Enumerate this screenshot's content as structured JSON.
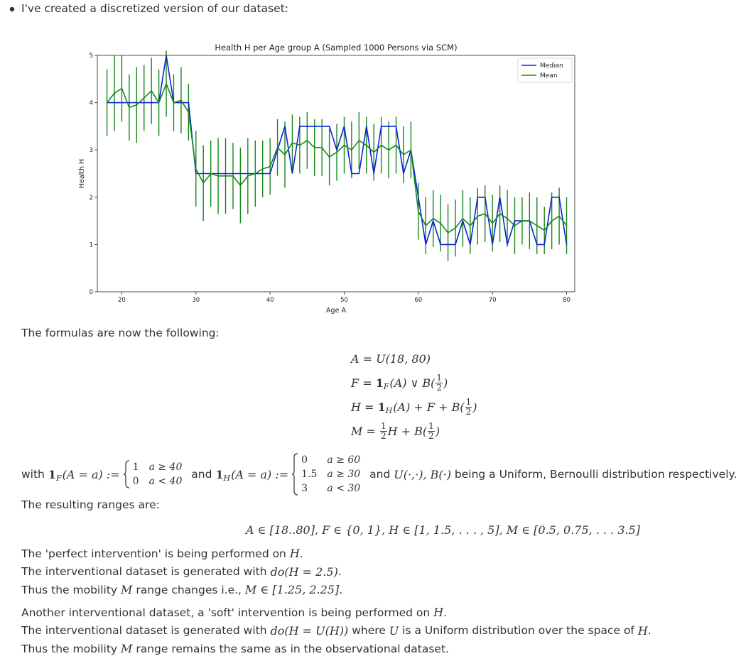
{
  "intro": "I've created a discretized version of our dataset:",
  "chart_data": {
    "type": "line",
    "title": "Health H per Age group A (Sampled 1000 Persons via SCM)",
    "x_label": "Age A",
    "y_label": "Health H",
    "x": [
      18,
      19,
      20,
      21,
      22,
      23,
      24,
      25,
      26,
      27,
      28,
      29,
      30,
      31,
      32,
      33,
      34,
      35,
      36,
      37,
      38,
      39,
      40,
      41,
      42,
      43,
      44,
      45,
      46,
      47,
      48,
      49,
      50,
      51,
      52,
      53,
      54,
      55,
      56,
      57,
      58,
      59,
      60,
      61,
      62,
      63,
      64,
      65,
      66,
      67,
      68,
      69,
      70,
      71,
      72,
      73,
      74,
      75,
      76,
      77,
      78,
      79,
      80
    ],
    "series": [
      {
        "name": "Median",
        "color": "#0a22d6",
        "values": [
          4,
          4,
          4,
          4,
          4,
          4,
          4,
          4,
          5,
          4,
          4,
          4,
          2.5,
          2.5,
          2.5,
          2.5,
          2.5,
          2.5,
          2.5,
          2.5,
          2.5,
          2.5,
          2.5,
          3,
          3.5,
          2.5,
          3.5,
          3.5,
          3.5,
          3.5,
          3.5,
          3,
          3.5,
          2.5,
          2.5,
          3.5,
          2.5,
          3.5,
          3.5,
          3.5,
          2.5,
          3,
          2,
          1,
          1.5,
          1,
          1,
          1,
          1.5,
          1,
          2,
          2,
          1,
          2,
          1,
          1.5,
          1.5,
          1.5,
          1,
          1,
          2,
          2,
          1
        ]
      },
      {
        "name": "Mean",
        "color": "#16871a",
        "values": [
          4.0,
          4.2,
          4.3,
          3.9,
          3.95,
          4.1,
          4.25,
          4.0,
          4.4,
          4.0,
          4.05,
          3.8,
          2.6,
          2.3,
          2.5,
          2.45,
          2.45,
          2.45,
          2.25,
          2.45,
          2.5,
          2.6,
          2.65,
          3.05,
          2.9,
          3.15,
          3.1,
          3.2,
          3.05,
          3.05,
          2.85,
          2.95,
          3.1,
          3.0,
          3.2,
          3.1,
          2.95,
          3.1,
          3.0,
          3.1,
          2.9,
          3.0,
          1.7,
          1.4,
          1.55,
          1.45,
          1.25,
          1.35,
          1.55,
          1.4,
          1.6,
          1.65,
          1.45,
          1.65,
          1.55,
          1.4,
          1.5,
          1.5,
          1.4,
          1.3,
          1.5,
          1.6,
          1.4
        ],
        "errors": [
          0.7,
          0.8,
          0.7,
          0.7,
          0.8,
          0.7,
          0.7,
          0.7,
          0.7,
          0.6,
          0.7,
          0.6,
          0.8,
          0.8,
          0.7,
          0.8,
          0.8,
          0.7,
          0.8,
          0.8,
          0.7,
          0.6,
          0.6,
          0.6,
          0.7,
          0.6,
          0.6,
          0.6,
          0.6,
          0.6,
          0.6,
          0.6,
          0.6,
          0.6,
          0.6,
          0.6,
          0.6,
          0.6,
          0.6,
          0.6,
          0.6,
          0.6,
          0.6,
          0.6,
          0.6,
          0.6,
          0.6,
          0.6,
          0.6,
          0.6,
          0.6,
          0.6,
          0.6,
          0.6,
          0.6,
          0.6,
          0.5,
          0.6,
          0.6,
          0.5,
          0.6,
          0.6,
          0.6
        ]
      }
    ],
    "xlim": [
      16.7,
      81.1
    ],
    "ylim": [
      0,
      5
    ],
    "xticks": [
      20,
      30,
      40,
      50,
      60,
      70,
      80
    ],
    "yticks": [
      0,
      1,
      2,
      3,
      4,
      5
    ],
    "legend": "upper right"
  },
  "formulas_intro": "The formulas are now the following:",
  "formulas": [
    [
      {
        "m": "A = U(18, 80)"
      }
    ],
    [
      {
        "m": "F = "
      },
      {
        "b": "1"
      },
      {
        "sub": "F"
      },
      {
        "m": "(A) ∨ B("
      },
      {
        "frac": [
          "1",
          "2"
        ]
      },
      {
        "m": ")"
      }
    ],
    [
      {
        "m": "H = "
      },
      {
        "b": "1"
      },
      {
        "sub": "H"
      },
      {
        "m": "(A) + F + B("
      },
      {
        "frac": [
          "1",
          "2"
        ]
      },
      {
        "m": ")"
      }
    ],
    [
      {
        "m": "M = "
      },
      {
        "frac": [
          "1",
          "2"
        ]
      },
      {
        "m": "H + B("
      },
      {
        "frac": [
          "1",
          "2"
        ]
      },
      {
        "m": ")"
      }
    ]
  ],
  "definition": [
    "with ",
    {
      "b": "1"
    },
    {
      "sub": "F"
    },
    {
      "m": "(A = a) :="
    },
    {
      "cases": [
        [
          "1",
          "a ≥ 40"
        ],
        [
          "0",
          "a < 40"
        ]
      ]
    },
    " and ",
    {
      "b": "1"
    },
    {
      "sub": "H"
    },
    {
      "m": "(A = a) :="
    },
    {
      "cases": [
        [
          "0",
          "a ≥ 60"
        ],
        [
          "1.5",
          "a ≥ 30"
        ],
        [
          "3",
          "a < 30"
        ]
      ]
    },
    " and ",
    {
      "m": "U(·,·), B(·)"
    },
    " being a Uniform, Bernoulli distribution respectively."
  ],
  "ranges_intro": "The resulting ranges are:",
  "ranges": [
    {
      "m": "A ∈ [18..80], F ∈ {0, 1}, H ∈ [1, 1.5, . . . , 5], M ∈ [0.5, 0.75, . . . 3.5]"
    }
  ],
  "paragraph_1": [
    [
      "The 'perfect intervention' is being performed on ",
      {
        "m": "H"
      },
      "."
    ],
    [
      "The interventional dataset is generated with ",
      {
        "m": "do(H = 2.5)"
      },
      "."
    ],
    [
      "Thus the mobility ",
      {
        "m": "M"
      },
      " range changes i.e., ",
      {
        "m": "M ∈ [1.25, 2.25]"
      },
      "."
    ]
  ],
  "paragraph_2": [
    [
      "Another interventional dataset, a 'soft' intervention is being performed on ",
      {
        "m": "H"
      },
      "."
    ],
    [
      "The interventional dataset is generated with ",
      {
        "m": "do(H = U(H))"
      },
      " where ",
      {
        "m": "U"
      },
      " is a Uniform distribution over the space of ",
      {
        "m": "H"
      },
      "."
    ],
    [
      "Thus the mobility ",
      {
        "m": "M"
      },
      " range remains the same as in the observational dataset."
    ]
  ]
}
